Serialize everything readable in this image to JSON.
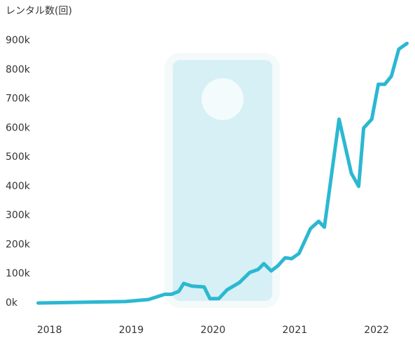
{
  "chart_data": {
    "type": "line",
    "ylabel": "レンタル数(回)",
    "x": [
      2018.05,
      2019.12,
      2019.4,
      2019.6,
      2019.68,
      2019.77,
      2019.83,
      2019.93,
      2020.08,
      2020.15,
      2020.26,
      2020.36,
      2020.51,
      2020.64,
      2020.74,
      2020.81,
      2020.9,
      2020.98,
      2021.07,
      2021.15,
      2021.24,
      2021.38,
      2021.48,
      2021.55,
      2021.73,
      2021.88,
      2021.97,
      2022.03,
      2022.13,
      2022.21,
      2022.29,
      2022.37,
      2022.46,
      2022.56
    ],
    "series": [
      {
        "color": "#2bb8d1",
        "values": [
          0,
          5000,
          12000,
          30000,
          30000,
          40000,
          67000,
          58000,
          55000,
          15000,
          15000,
          45000,
          70000,
          105000,
          115000,
          135000,
          110000,
          127000,
          155000,
          152000,
          170000,
          255000,
          280000,
          260000,
          630000,
          445000,
          400000,
          600000,
          630000,
          750000,
          750000,
          778000,
          870000,
          890000
        ]
      }
    ],
    "xlim": [
      2017.9,
      2022.65
    ],
    "xticks": [
      2018,
      2019,
      2020,
      2021,
      2022
    ],
    "ylim": [
      0,
      900000
    ],
    "yticks": [
      {
        "value": 0,
        "label": "0k"
      },
      {
        "value": 100000,
        "label": "100k"
      },
      {
        "value": 200000,
        "label": "200k"
      },
      {
        "value": 300000,
        "label": "300k"
      },
      {
        "value": 400000,
        "label": "400k"
      },
      {
        "value": 500000,
        "label": "500k"
      },
      {
        "value": 600000,
        "label": "600k"
      },
      {
        "value": 700000,
        "label": "700k"
      },
      {
        "value": 800000,
        "label": "800k"
      },
      {
        "value": 900000,
        "label": "900k"
      }
    ],
    "grid": false
  }
}
